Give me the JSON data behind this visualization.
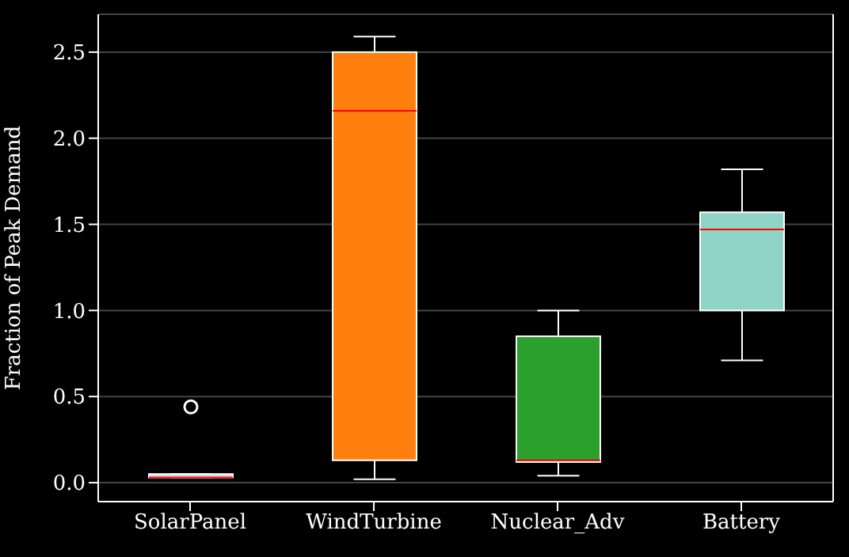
{
  "chart_data": {
    "type": "box",
    "ylabel": "Fraction of Peak Demand",
    "categories": [
      "SolarPanel",
      "WindTurbine",
      "Nuclear_Adv",
      "Battery"
    ],
    "colors": [
      "#c8d4f0",
      "#ff7f0e",
      "#2ca02c",
      "#8fd4c8"
    ],
    "boxes": [
      {
        "low": 0.03,
        "q1": 0.03,
        "median": 0.03,
        "q3": 0.05,
        "high": 0.05,
        "outliers": [
          0.44
        ]
      },
      {
        "low": 0.02,
        "q1": 0.13,
        "median": 2.16,
        "q3": 2.5,
        "high": 2.59
      },
      {
        "low": 0.04,
        "q1": 0.12,
        "median": 0.13,
        "q3": 0.85,
        "high": 1.0
      },
      {
        "low": 0.71,
        "q1": 1.0,
        "median": 1.47,
        "q3": 1.57,
        "high": 1.82
      }
    ],
    "ylim": [
      -0.11,
      2.72
    ],
    "yticks": [
      {
        "value": 0,
        "label": "0.0"
      },
      {
        "value": 0.5,
        "label": "0.5"
      },
      {
        "value": 1,
        "label": "1.0"
      },
      {
        "value": 1.5,
        "label": "1.5"
      },
      {
        "value": 2,
        "label": "2.0"
      },
      {
        "value": 2.5,
        "label": "2.5"
      }
    ],
    "grid": "y"
  }
}
